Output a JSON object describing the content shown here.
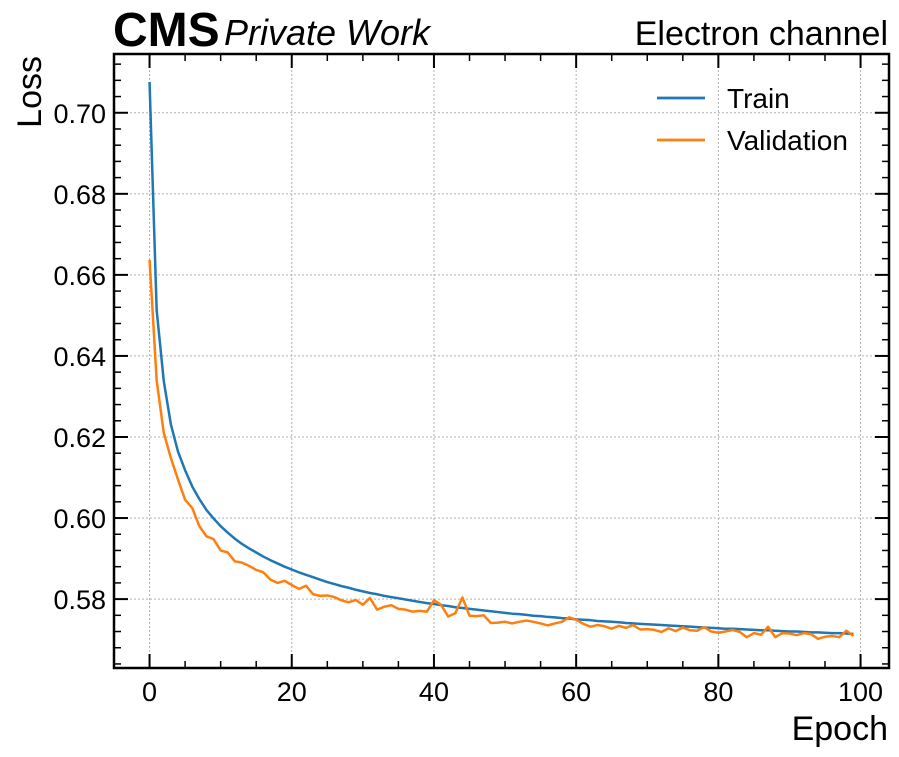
{
  "header": {
    "experiment": "CMS",
    "status": "Private Work",
    "channel": "Electron channel"
  },
  "chart_data": {
    "type": "line",
    "xlabel": "Epoch",
    "ylabel": "Loss",
    "xlim": [
      -5,
      104
    ],
    "ylim": [
      0.563,
      0.7145
    ],
    "xticks": [
      0,
      20,
      40,
      60,
      80,
      100
    ],
    "yticks": [
      0.58,
      0.6,
      0.62,
      0.64,
      0.66,
      0.68,
      0.7
    ],
    "ytick_labels": [
      "0.58",
      "0.60",
      "0.62",
      "0.64",
      "0.66",
      "0.68",
      "0.70"
    ],
    "grid": true,
    "legend_position": "top-right",
    "series": [
      {
        "name": "Train",
        "color": "#1f77b4",
        "x": [
          0,
          1,
          2,
          3,
          4,
          5,
          6,
          7,
          8,
          9,
          10,
          11,
          12,
          13,
          14,
          15,
          16,
          17,
          18,
          19,
          20,
          21,
          22,
          23,
          24,
          25,
          26,
          27,
          28,
          29,
          30,
          31,
          32,
          33,
          34,
          35,
          36,
          37,
          38,
          39,
          40,
          41,
          42,
          43,
          44,
          45,
          46,
          47,
          48,
          49,
          50,
          51,
          52,
          53,
          54,
          55,
          56,
          57,
          58,
          59,
          60,
          61,
          62,
          63,
          64,
          65,
          66,
          67,
          68,
          69,
          70,
          71,
          72,
          73,
          74,
          75,
          76,
          77,
          78,
          79,
          80,
          81,
          82,
          83,
          84,
          85,
          86,
          87,
          88,
          89,
          90,
          91,
          92,
          93,
          94,
          95,
          96,
          97,
          98,
          99
        ],
        "values": [
          0.7076,
          0.6513,
          0.6338,
          0.6231,
          0.6164,
          0.6118,
          0.6078,
          0.6047,
          0.602,
          0.5999,
          0.598,
          0.5964,
          0.5949,
          0.5936,
          0.5925,
          0.5915,
          0.5905,
          0.5896,
          0.5888,
          0.588,
          0.5873,
          0.5866,
          0.586,
          0.5854,
          0.5848,
          0.5842,
          0.5837,
          0.5832,
          0.5828,
          0.5823,
          0.5819,
          0.5815,
          0.5812,
          0.5808,
          0.5805,
          0.5802,
          0.5799,
          0.5796,
          0.5793,
          0.579,
          0.5788,
          0.5785,
          0.5783,
          0.578,
          0.5778,
          0.5776,
          0.5774,
          0.5772,
          0.577,
          0.5768,
          0.5766,
          0.5764,
          0.5763,
          0.5761,
          0.5759,
          0.5758,
          0.5756,
          0.5755,
          0.5753,
          0.5752,
          0.575,
          0.5749,
          0.5748,
          0.5746,
          0.5745,
          0.5744,
          0.5743,
          0.5741,
          0.574,
          0.5739,
          0.5738,
          0.5737,
          0.5736,
          0.5735,
          0.5734,
          0.5733,
          0.5732,
          0.5731,
          0.573,
          0.5729,
          0.5728,
          0.5727,
          0.5727,
          0.5726,
          0.5725,
          0.5724,
          0.5723,
          0.5723,
          0.5722,
          0.5721,
          0.572,
          0.572,
          0.5719,
          0.5718,
          0.5718,
          0.5717,
          0.5716,
          0.5716,
          0.5715,
          0.5714
        ]
      },
      {
        "name": "Validation",
        "color": "#ff7f0e",
        "x": [
          0,
          1,
          2,
          3,
          4,
          5,
          6,
          7,
          8,
          9,
          10,
          11,
          12,
          13,
          14,
          15,
          16,
          17,
          18,
          19,
          20,
          21,
          22,
          23,
          24,
          25,
          26,
          27,
          28,
          29,
          30,
          31,
          32,
          33,
          34,
          35,
          36,
          37,
          38,
          39,
          40,
          41,
          42,
          43,
          44,
          45,
          46,
          47,
          48,
          49,
          50,
          51,
          52,
          53,
          54,
          55,
          56,
          57,
          58,
          59,
          60,
          61,
          62,
          63,
          64,
          65,
          66,
          67,
          68,
          69,
          70,
          71,
          72,
          73,
          74,
          75,
          76,
          77,
          78,
          79,
          80,
          81,
          82,
          83,
          84,
          85,
          86,
          87,
          88,
          89,
          90,
          91,
          92,
          93,
          94,
          95,
          96,
          97,
          98,
          99
        ],
        "values": [
          0.6637,
          0.634,
          0.621,
          0.6148,
          0.6095,
          0.6045,
          0.6025,
          0.598,
          0.5955,
          0.5948,
          0.592,
          0.5915,
          0.5893,
          0.589,
          0.5882,
          0.5872,
          0.5866,
          0.5848,
          0.584,
          0.5845,
          0.5835,
          0.5825,
          0.5833,
          0.5812,
          0.5808,
          0.5809,
          0.5805,
          0.5797,
          0.5792,
          0.5798,
          0.5786,
          0.5803,
          0.5774,
          0.5781,
          0.5785,
          0.5776,
          0.5774,
          0.5769,
          0.5771,
          0.5769,
          0.5797,
          0.5786,
          0.5757,
          0.5765,
          0.5804,
          0.5759,
          0.5758,
          0.576,
          0.5741,
          0.5742,
          0.5744,
          0.574,
          0.5744,
          0.5747,
          0.5744,
          0.574,
          0.5735,
          0.574,
          0.5744,
          0.5755,
          0.5749,
          0.5739,
          0.5732,
          0.5736,
          0.5733,
          0.5727,
          0.5734,
          0.5729,
          0.5736,
          0.5725,
          0.5726,
          0.5724,
          0.5719,
          0.5728,
          0.5721,
          0.573,
          0.5723,
          0.5722,
          0.5731,
          0.572,
          0.5717,
          0.572,
          0.5724,
          0.5719,
          0.5706,
          0.5716,
          0.5712,
          0.5732,
          0.5706,
          0.5716,
          0.5715,
          0.5711,
          0.5716,
          0.5714,
          0.5702,
          0.5707,
          0.5709,
          0.5706,
          0.5722,
          0.5709
        ]
      }
    ]
  }
}
